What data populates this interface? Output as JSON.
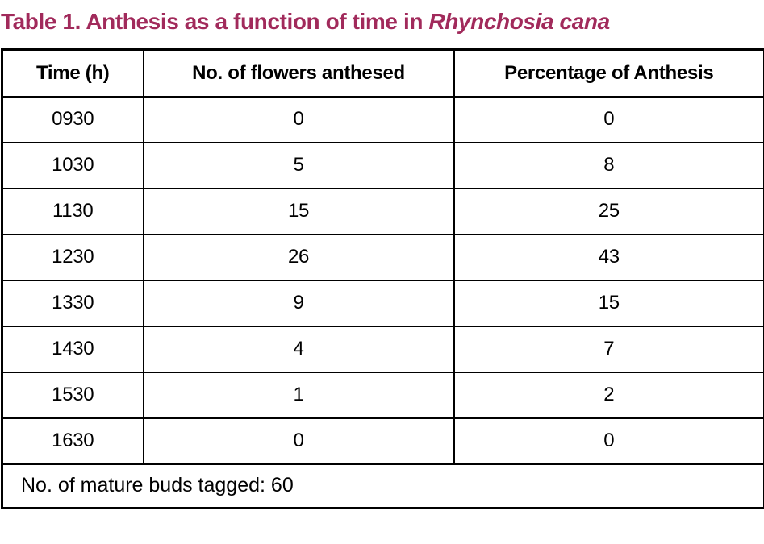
{
  "title": {
    "prefix": "Table 1. Anthesis as a function of time in ",
    "species": "Rhynchosia cana"
  },
  "colors": {
    "title_text": "#A12A5B",
    "table_border": "#000000",
    "body_text": "#000000",
    "background": "#FFFFFF"
  },
  "table": {
    "headers": [
      "Time (h)",
      "No. of flowers anthesed",
      "Percentage of Anthesis"
    ],
    "rows": [
      [
        "0930",
        "0",
        "0"
      ],
      [
        "1030",
        "5",
        "8"
      ],
      [
        "1130",
        "15",
        "25"
      ],
      [
        "1230",
        "26",
        "43"
      ],
      [
        "1330",
        "9",
        "15"
      ],
      [
        "1430",
        "4",
        "7"
      ],
      [
        "1530",
        "1",
        "2"
      ],
      [
        "1630",
        "0",
        "0"
      ]
    ],
    "footer": "No. of mature buds tagged: 60"
  },
  "chart_data": {
    "type": "table",
    "title": "Table 1. Anthesis as a function of time in Rhynchosia cana",
    "columns": [
      "Time (h)",
      "No. of flowers anthesed",
      "Percentage of Anthesis"
    ],
    "rows": [
      [
        "0930",
        0,
        0
      ],
      [
        "1030",
        5,
        8
      ],
      [
        "1130",
        15,
        25
      ],
      [
        "1230",
        26,
        43
      ],
      [
        "1330",
        9,
        15
      ],
      [
        "1430",
        4,
        7
      ],
      [
        "1530",
        1,
        2
      ],
      [
        "1630",
        0,
        0
      ]
    ],
    "note": "No. of mature buds tagged: 60",
    "mature_buds_tagged": 60
  }
}
